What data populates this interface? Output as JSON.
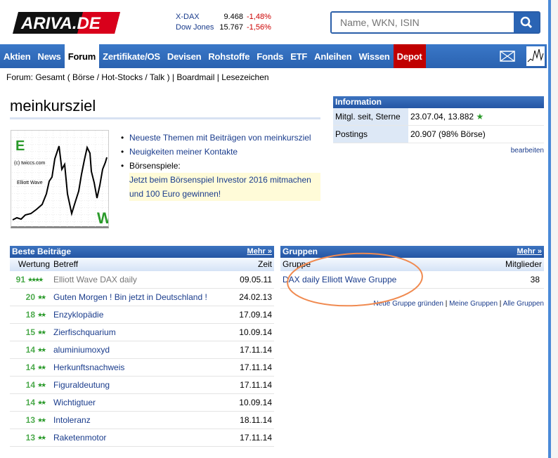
{
  "brand": {
    "logo_text": "ARIVA.DE"
  },
  "tickers": [
    {
      "name": "X-DAX",
      "value": "9.468",
      "change": "-1,48%"
    },
    {
      "name": "Dow Jones",
      "value": "15.767",
      "change": "-1,56%"
    }
  ],
  "search": {
    "placeholder": "Name, WKN, ISIN"
  },
  "nav": {
    "items": [
      "Aktien",
      "News",
      "Forum",
      "Zertifikate/OS",
      "Devisen",
      "Rohstoffe",
      "Fonds",
      "ETF",
      "Anleihen",
      "Wissen",
      "Depot"
    ],
    "active": "Forum"
  },
  "breadcrumb": {
    "prefix": "Forum: ",
    "gesamt": "Gesamt",
    "open": " ( ",
    "boerse": "Börse",
    "hot": "Hot-Stocks",
    "talk": "Talk",
    "close": " ) | ",
    "boardmail": "Boardmail",
    "lesezeichen": "Lesezeichen",
    "sep1": " / ",
    "sep2": " | "
  },
  "profile": {
    "username": "meinkursziel",
    "avatar_texts": [
      "E",
      "(c) twiccs.com",
      "Elliott Wave",
      "W"
    ],
    "links": [
      "Neueste Themen mit Beiträgen von meinkursziel",
      "Neuigkeiten meiner Kontakte"
    ],
    "boersenspiele_label": "Börsenspiele:",
    "boersenspiele_promo": "Jetzt beim Börsenspiel Investor 2016 mitmachen und 100 Euro gewinnen!"
  },
  "information": {
    "title": "Information",
    "rows": [
      {
        "key": "Mitgl. seit, Sterne",
        "value": "23.07.04, 13.882"
      },
      {
        "key": "Postings",
        "value": "20.907 (98% Börse)"
      }
    ],
    "edit": "bearbeiten"
  },
  "beste_beitraege": {
    "title": "Beste Beiträge",
    "more": "Mehr »",
    "columns": [
      "Wertung",
      "Betreff",
      "Zeit"
    ],
    "rows": [
      {
        "score": "91",
        "stars": "★★★★",
        "title": "Elliott Wave DAX daily",
        "date": "09.05.11",
        "visited": true
      },
      {
        "score": "20",
        "stars": "★★",
        "title": "Guten Morgen ! Bin jetzt in Deutschland !",
        "date": "24.02.13"
      },
      {
        "score": "18",
        "stars": "★★",
        "title": "Enzyklopädie",
        "date": "17.09.14"
      },
      {
        "score": "15",
        "stars": "★★",
        "title": "Zierfischquarium",
        "date": "10.09.14"
      },
      {
        "score": "14",
        "stars": "★★",
        "title": "aluminiumoxyd",
        "date": "17.11.14"
      },
      {
        "score": "14",
        "stars": "★★",
        "title": "Herkunftsnachweis",
        "date": "17.11.14"
      },
      {
        "score": "14",
        "stars": "★★",
        "title": "Figuraldeutung",
        "date": "17.11.14"
      },
      {
        "score": "14",
        "stars": "★★",
        "title": "Wichtigtuer",
        "date": "10.09.14"
      },
      {
        "score": "13",
        "stars": "★★",
        "title": "Intoleranz",
        "date": "18.11.14"
      },
      {
        "score": "13",
        "stars": "★★",
        "title": "Raketenmotor",
        "date": "17.11.14"
      }
    ]
  },
  "gruppen": {
    "title": "Gruppen",
    "more": "Mehr »",
    "columns": [
      "Gruppe",
      "Mitglieder"
    ],
    "rows": [
      {
        "name": "DAX daily Elliott Wave Gruppe",
        "members": "38"
      }
    ],
    "footer": [
      "Neue Gruppe gründen",
      "Meine Gruppen",
      "Alle Gruppen"
    ],
    "sep": " | "
  },
  "colors": {
    "nav": "#2f6bbd",
    "depot": "#c00000",
    "link": "#1a3c8c",
    "score": "#4caa4c",
    "annotation": "#f08a50"
  }
}
